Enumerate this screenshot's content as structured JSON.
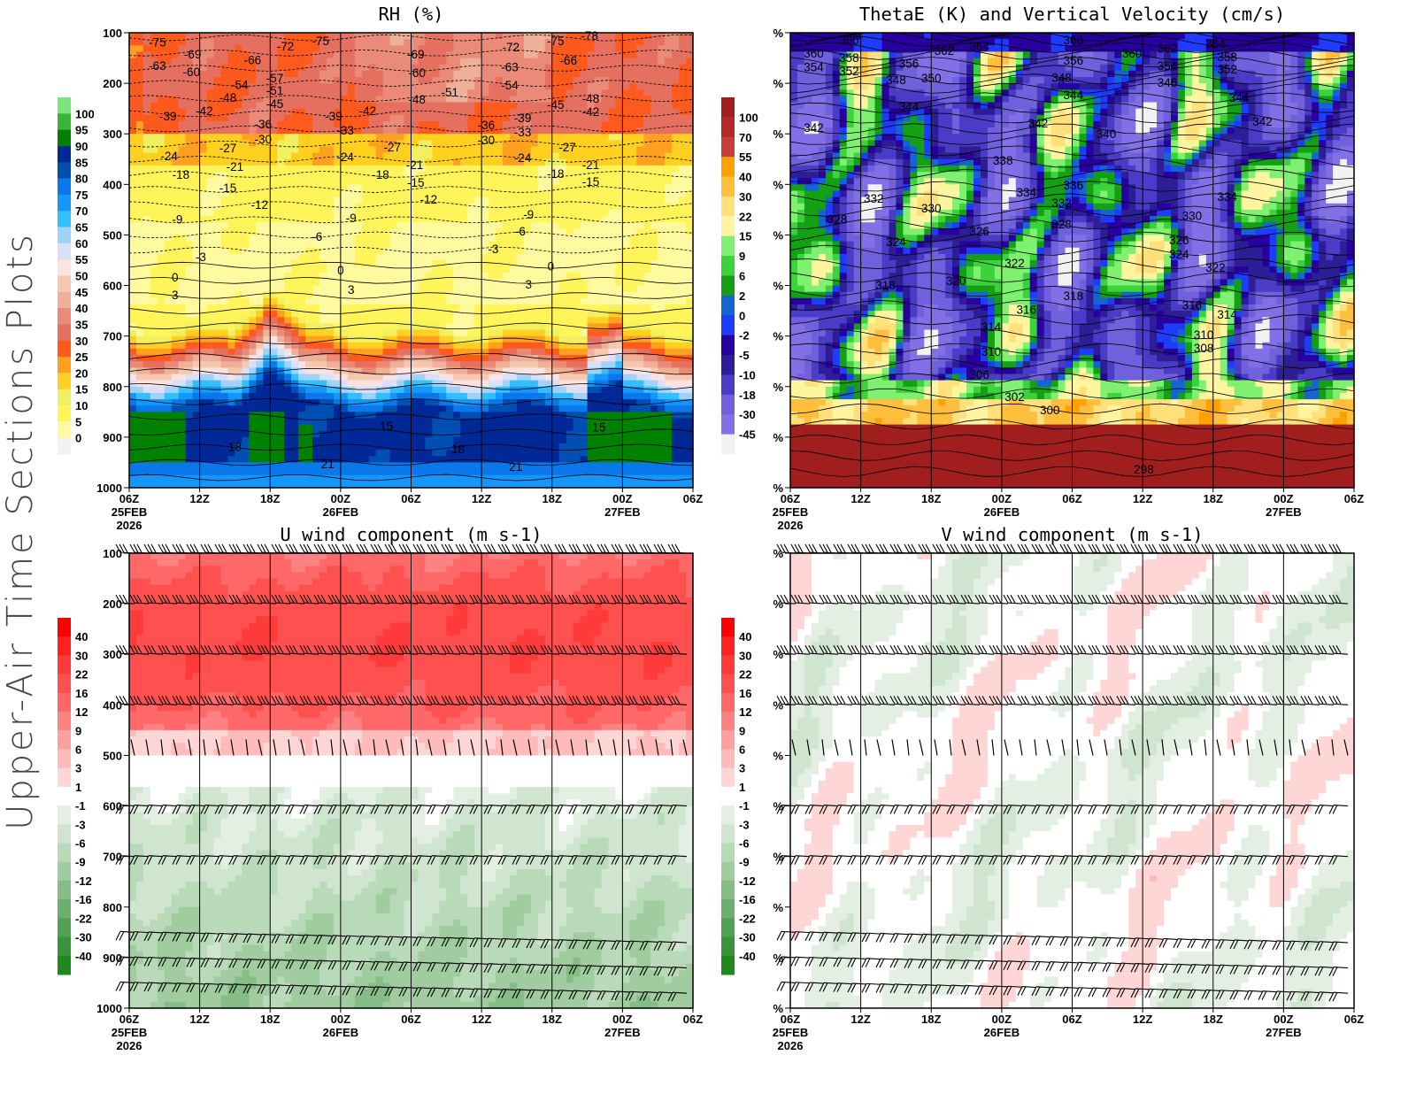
{
  "side_title": "Upper-Air Time Sections Plots",
  "x_axis": {
    "ticks": [
      "06Z",
      "12Z",
      "18Z",
      "00Z",
      "06Z",
      "12Z",
      "18Z",
      "00Z",
      "06Z"
    ],
    "dates": [
      {
        "tick": 0,
        "label": "25FEB"
      },
      {
        "tick": 3,
        "label": "26FEB"
      },
      {
        "tick": 7,
        "label": "27FEB"
      }
    ],
    "year": "2026",
    "range_hours": [
      0,
      48
    ]
  },
  "chart_data": [
    {
      "type": "contour",
      "title": "RH (%)",
      "y_ticks": [
        "100",
        "200",
        "300",
        "400",
        "500",
        "600",
        "700",
        "800",
        "900",
        "1000"
      ],
      "ylim": [
        100,
        1000
      ],
      "colorbar": {
        "labels": [
          "100",
          "95",
          "90",
          "85",
          "80",
          "75",
          "70",
          "65",
          "60",
          "55",
          "50",
          "45",
          "40",
          "35",
          "30",
          "25",
          "20",
          "15",
          "10",
          "5",
          "0"
        ],
        "colors": [
          "#78e678",
          "#3cb43c",
          "#008200",
          "#002896",
          "#0050b4",
          "#0a78eb",
          "#1496fa",
          "#32beff",
          "#a0d2fa",
          "#d8e0fa",
          "#fde2e2",
          "#f5c8b0",
          "#eeb098",
          "#ea8a78",
          "#e6705f",
          "#ff5a1e",
          "#ffa020",
          "#ffd020",
          "#f0f060",
          "#fff55a",
          "#fffaa0",
          "#f2f2f2"
        ]
      },
      "contour_labels": [
        {
          "hour": 2.4,
          "pressure": 118,
          "value": "-75"
        },
        {
          "hour": 5.4,
          "pressure": 142,
          "value": "-69"
        },
        {
          "hour": 2.4,
          "pressure": 165,
          "value": "-63"
        },
        {
          "hour": 5.3,
          "pressure": 177,
          "value": "-60"
        },
        {
          "hour": 10.5,
          "pressure": 153,
          "value": "-66"
        },
        {
          "hour": 13.3,
          "pressure": 126,
          "value": "-72"
        },
        {
          "hour": 16.3,
          "pressure": 116,
          "value": "-75"
        },
        {
          "hour": 12.4,
          "pressure": 189,
          "value": "-57"
        },
        {
          "hour": 9.4,
          "pressure": 202,
          "value": "-54"
        },
        {
          "hour": 12.4,
          "pressure": 214,
          "value": "-51"
        },
        {
          "hour": 8.4,
          "pressure": 228,
          "value": "-48"
        },
        {
          "hour": 12.4,
          "pressure": 240,
          "value": "-45"
        },
        {
          "hour": 6.4,
          "pressure": 254,
          "value": "-42"
        },
        {
          "hour": 3.3,
          "pressure": 265,
          "value": "-39"
        },
        {
          "hour": 11.4,
          "pressure": 280,
          "value": "-36"
        },
        {
          "hour": 11.4,
          "pressure": 310,
          "value": "-30"
        },
        {
          "hour": 8.4,
          "pressure": 328,
          "value": "-27"
        },
        {
          "hour": 3.4,
          "pressure": 343,
          "value": "-24"
        },
        {
          "hour": 9.0,
          "pressure": 364,
          "value": "-21"
        },
        {
          "hour": 4.4,
          "pressure": 380,
          "value": "-18"
        },
        {
          "hour": 8.4,
          "pressure": 406,
          "value": "-15"
        },
        {
          "hour": 11.1,
          "pressure": 440,
          "value": "-12"
        },
        {
          "hour": 4.1,
          "pressure": 469,
          "value": "-9"
        },
        {
          "hour": 6.1,
          "pressure": 543,
          "value": "-3"
        },
        {
          "hour": 3.9,
          "pressure": 583,
          "value": "0"
        },
        {
          "hour": 3.9,
          "pressure": 618,
          "value": "3"
        },
        {
          "hour": 17.4,
          "pressure": 265,
          "value": "-39"
        },
        {
          "hour": 20.3,
          "pressure": 254,
          "value": "-42"
        },
        {
          "hour": 18.4,
          "pressure": 293,
          "value": "-33"
        },
        {
          "hour": 18.4,
          "pressure": 345,
          "value": "-24"
        },
        {
          "hour": 22.4,
          "pressure": 326,
          "value": "-27"
        },
        {
          "hour": 21.4,
          "pressure": 380,
          "value": "-18"
        },
        {
          "hour": 24.4,
          "pressure": 396,
          "value": "-15"
        },
        {
          "hour": 24.3,
          "pressure": 361,
          "value": "-21"
        },
        {
          "hour": 25.5,
          "pressure": 429,
          "value": "-12"
        },
        {
          "hour": 18.9,
          "pressure": 466,
          "value": "-9"
        },
        {
          "hour": 16.0,
          "pressure": 503,
          "value": "-6"
        },
        {
          "hour": 18.0,
          "pressure": 569,
          "value": "0"
        },
        {
          "hour": 18.9,
          "pressure": 608,
          "value": "3"
        },
        {
          "hour": 24.4,
          "pressure": 142,
          "value": "-69"
        },
        {
          "hour": 24.5,
          "pressure": 179,
          "value": "-60"
        },
        {
          "hour": 24.5,
          "pressure": 231,
          "value": "-48"
        },
        {
          "hour": 27.3,
          "pressure": 217,
          "value": "-51"
        },
        {
          "hour": 32.5,
          "pressure": 128,
          "value": "-72"
        },
        {
          "hour": 36.3,
          "pressure": 116,
          "value": "-75"
        },
        {
          "hour": 39.2,
          "pressure": 105,
          "value": "-78"
        },
        {
          "hour": 37.4,
          "pressure": 154,
          "value": "-66"
        },
        {
          "hour": 32.4,
          "pressure": 167,
          "value": "-63"
        },
        {
          "hour": 32.4,
          "pressure": 203,
          "value": "-54"
        },
        {
          "hour": 39.3,
          "pressure": 230,
          "value": "-48"
        },
        {
          "hour": 36.3,
          "pressure": 242,
          "value": "-45"
        },
        {
          "hour": 39.3,
          "pressure": 256,
          "value": "-42"
        },
        {
          "hour": 33.5,
          "pressure": 268,
          "value": "-39"
        },
        {
          "hour": 30.4,
          "pressure": 282,
          "value": "-36"
        },
        {
          "hour": 33.5,
          "pressure": 296,
          "value": "-33"
        },
        {
          "hour": 30.4,
          "pressure": 312,
          "value": "-30"
        },
        {
          "hour": 37.3,
          "pressure": 326,
          "value": "-27"
        },
        {
          "hour": 33.5,
          "pressure": 347,
          "value": "-24"
        },
        {
          "hour": 39.3,
          "pressure": 361,
          "value": "-21"
        },
        {
          "hour": 36.3,
          "pressure": 378,
          "value": "-18"
        },
        {
          "hour": 39.3,
          "pressure": 394,
          "value": "-15"
        },
        {
          "hour": 34.0,
          "pressure": 459,
          "value": "-9"
        },
        {
          "hour": 33.3,
          "pressure": 492,
          "value": "-6"
        },
        {
          "hour": 31.0,
          "pressure": 527,
          "value": "-3"
        },
        {
          "hour": 35.9,
          "pressure": 561,
          "value": "0"
        },
        {
          "hour": 34.0,
          "pressure": 597,
          "value": "3"
        },
        {
          "hour": 21.9,
          "pressure": 877,
          "value": "15"
        },
        {
          "hour": 9.0,
          "pressure": 919,
          "value": "18"
        },
        {
          "hour": 16.9,
          "pressure": 953,
          "value": "21"
        },
        {
          "hour": 28.0,
          "pressure": 923,
          "value": "18"
        },
        {
          "hour": 32.9,
          "pressure": 958,
          "value": "21"
        },
        {
          "hour": 40.0,
          "pressure": 880,
          "value": "15"
        }
      ]
    },
    {
      "type": "contour",
      "title": "ThetaE (K) and Vertical Velocity (cm/s)",
      "y_ticks": [
        "%",
        "%",
        "%",
        "%",
        "%",
        "%",
        "%",
        "%",
        "%",
        "%"
      ],
      "ylim": [
        100,
        1000
      ],
      "colorbar": {
        "labels": [
          "100",
          "70",
          "55",
          "40",
          "30",
          "22",
          "15",
          "9",
          "6",
          "2",
          "0",
          "-2",
          "-5",
          "-10",
          "-18",
          "-30",
          "-45"
        ],
        "colors": [
          "#a01e1e",
          "#b42828",
          "#c83c3c",
          "#ffa000",
          "#ffbe3c",
          "#ffe07a",
          "#fff5a0",
          "#80f070",
          "#3cd23c",
          "#14a014",
          "#1464d2",
          "#1e3cff",
          "#2800a0",
          "#2d1e96",
          "#4b3cc8",
          "#7060dc",
          "#8470e6",
          "#f2f2f2"
        ]
      },
      "contour_labels": [
        {
          "hour": 5,
          "pressure": 114,
          "value": "366"
        },
        {
          "hour": 2,
          "pressure": 140,
          "value": "360"
        },
        {
          "hour": 5,
          "pressure": 149,
          "value": "358"
        },
        {
          "hour": 2,
          "pressure": 167,
          "value": "354"
        },
        {
          "hour": 5,
          "pressure": 175,
          "value": "352"
        },
        {
          "hour": 10.1,
          "pressure": 160,
          "value": "356"
        },
        {
          "hour": 13.1,
          "pressure": 135,
          "value": "362"
        },
        {
          "hour": 16.1,
          "pressure": 126,
          "value": "364"
        },
        {
          "hour": 12,
          "pressure": 189,
          "value": "350"
        },
        {
          "hour": 9,
          "pressure": 193,
          "value": "348"
        },
        {
          "hour": 10.1,
          "pressure": 245,
          "value": "344"
        },
        {
          "hour": 2,
          "pressure": 287,
          "value": "342"
        },
        {
          "hour": 21.1,
          "pressure": 279,
          "value": "342"
        },
        {
          "hour": 18.1,
          "pressure": 352,
          "value": "338"
        },
        {
          "hour": 26.9,
          "pressure": 300,
          "value": "340"
        },
        {
          "hour": 24.1,
          "pressure": 401,
          "value": "336"
        },
        {
          "hour": 20.1,
          "pressure": 415,
          "value": "334"
        },
        {
          "hour": 7.1,
          "pressure": 427,
          "value": "332"
        },
        {
          "hour": 23.1,
          "pressure": 436,
          "value": "332"
        },
        {
          "hour": 12,
          "pressure": 447,
          "value": "330"
        },
        {
          "hour": 4,
          "pressure": 469,
          "value": "328"
        },
        {
          "hour": 23.1,
          "pressure": 478,
          "value": "328"
        },
        {
          "hour": 16.1,
          "pressure": 492,
          "value": "326"
        },
        {
          "hour": 9,
          "pressure": 513,
          "value": "324"
        },
        {
          "hour": 19.1,
          "pressure": 555,
          "value": "322"
        },
        {
          "hour": 14.1,
          "pressure": 590,
          "value": "320"
        },
        {
          "hour": 8.1,
          "pressure": 599,
          "value": "318"
        },
        {
          "hour": 24.1,
          "pressure": 620,
          "value": "318"
        },
        {
          "hour": 20.1,
          "pressure": 647,
          "value": "316"
        },
        {
          "hour": 17.1,
          "pressure": 681,
          "value": "314"
        },
        {
          "hour": 17.1,
          "pressure": 730,
          "value": "310"
        },
        {
          "hour": 16.1,
          "pressure": 776,
          "value": "306"
        },
        {
          "hour": 19.1,
          "pressure": 820,
          "value": "302"
        },
        {
          "hour": 22.1,
          "pressure": 846,
          "value": "300"
        },
        {
          "hour": 30.1,
          "pressure": 963,
          "value": "298"
        },
        {
          "hour": 24.1,
          "pressure": 114,
          "value": "366"
        },
        {
          "hour": 24.1,
          "pressure": 154,
          "value": "356"
        },
        {
          "hour": 23.1,
          "pressure": 188,
          "value": "348"
        },
        {
          "hour": 24.1,
          "pressure": 223,
          "value": "344"
        },
        {
          "hour": 29.1,
          "pressure": 140,
          "value": "360"
        },
        {
          "hour": 32.1,
          "pressure": 131,
          "value": "362"
        },
        {
          "hour": 32.1,
          "pressure": 165,
          "value": "354"
        },
        {
          "hour": 32.1,
          "pressure": 198,
          "value": "346"
        },
        {
          "hour": 36.2,
          "pressure": 121,
          "value": "364"
        },
        {
          "hour": 37.2,
          "pressure": 147,
          "value": "358"
        },
        {
          "hour": 37.2,
          "pressure": 172,
          "value": "352"
        },
        {
          "hour": 38.2,
          "pressure": 228,
          "value": "344"
        },
        {
          "hour": 40.2,
          "pressure": 275,
          "value": "342"
        },
        {
          "hour": 37.2,
          "pressure": 424,
          "value": "334"
        },
        {
          "hour": 34.2,
          "pressure": 462,
          "value": "330"
        },
        {
          "hour": 33.1,
          "pressure": 510,
          "value": "326"
        },
        {
          "hour": 33.1,
          "pressure": 538,
          "value": "324"
        },
        {
          "hour": 36.2,
          "pressure": 564,
          "value": "322"
        },
        {
          "hour": 34.2,
          "pressure": 638,
          "value": "316"
        },
        {
          "hour": 37.2,
          "pressure": 657,
          "value": "314"
        },
        {
          "hour": 35.2,
          "pressure": 697,
          "value": "310"
        },
        {
          "hour": 35.2,
          "pressure": 723,
          "value": "308"
        }
      ]
    },
    {
      "type": "contour",
      "title": "U wind component (m s-1)",
      "y_ticks": [
        "100",
        "200",
        "300",
        "400",
        "500",
        "600",
        "700",
        "800",
        "900",
        "1000"
      ],
      "ylim": [
        100,
        1000
      ],
      "overlay": "wind barbs",
      "colorbar": {
        "labels": [
          "40",
          "30",
          "22",
          "16",
          "12",
          "9",
          "6",
          "3",
          "1",
          "-1",
          "-3",
          "-6",
          "-9",
          "-12",
          "-16",
          "-22",
          "-30",
          "-40"
        ],
        "colors": [
          "#ff0000",
          "#ff2020",
          "#ff3a3a",
          "#ff5050",
          "#ff6868",
          "#ff8282",
          "#ffa0a0",
          "#ffbaba",
          "#ffd6d6",
          "#ffffff",
          "#e4efe4",
          "#d0e5d0",
          "#b9dab9",
          "#a0cca0",
          "#86bd86",
          "#6caf6c",
          "#52a052",
          "#3a943a",
          "#1e8a1e"
        ]
      },
      "contour_labels": []
    },
    {
      "type": "contour",
      "title": "V wind component (m s-1)",
      "y_ticks": [
        "%",
        "%",
        "%",
        "%",
        "%",
        "%",
        "%",
        "%",
        "%",
        "%"
      ],
      "ylim": [
        100,
        1000
      ],
      "overlay": "wind barbs",
      "colorbar": {
        "labels": [
          "40",
          "30",
          "22",
          "16",
          "12",
          "9",
          "6",
          "3",
          "1",
          "-1",
          "-3",
          "-6",
          "-9",
          "-12",
          "-16",
          "-22",
          "-30",
          "-40"
        ],
        "colors": [
          "#ff0000",
          "#ff2020",
          "#ff3a3a",
          "#ff5050",
          "#ff6868",
          "#ff8282",
          "#ffa0a0",
          "#ffbaba",
          "#ffd6d6",
          "#ffffff",
          "#e4efe4",
          "#d0e5d0",
          "#b9dab9",
          "#a0cca0",
          "#86bd86",
          "#6caf6c",
          "#52a052",
          "#3a943a",
          "#1e8a1e"
        ]
      },
      "contour_labels": []
    }
  ]
}
